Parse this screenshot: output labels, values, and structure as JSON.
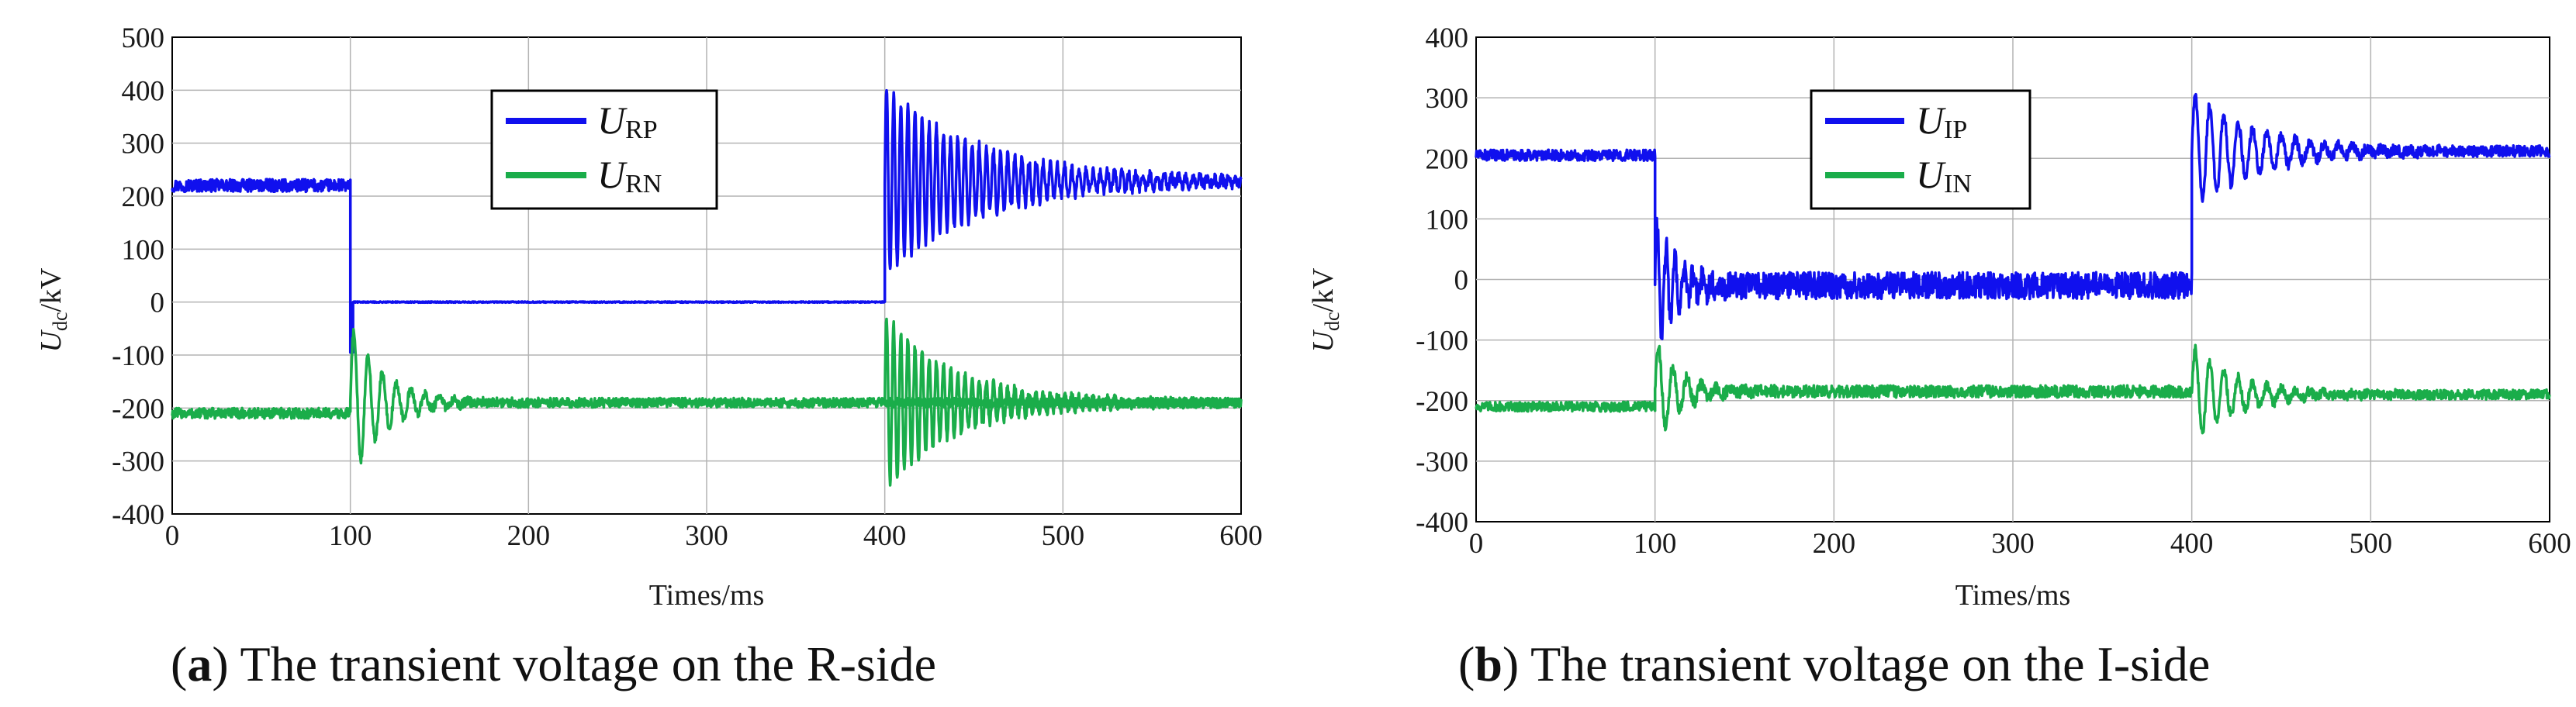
{
  "chart_data": [
    {
      "type": "line",
      "id": "a",
      "caption_letter": "a",
      "caption_text": "The transient voltage on the R-side",
      "xlabel": "Times/ms",
      "ylabel": "U",
      "ylabel_sub": "dc",
      "ylabel_unit": "/kV",
      "xlim": [
        0,
        600
      ],
      "ylim": [
        -400,
        500
      ],
      "xticks": [
        0,
        100,
        200,
        300,
        400,
        500,
        600
      ],
      "yticks": [
        500,
        400,
        300,
        200,
        100,
        0,
        -100,
        -200,
        -300,
        -400
      ],
      "legend": {
        "placement": "top-center"
      },
      "series": [
        {
          "name": "U_RP",
          "main": "U",
          "sub": "RP",
          "color": "#1010ee",
          "segments": [
            {
              "t0": 0,
              "t1": 100,
              "base": 220,
              "noise": 12
            },
            {
              "t0": 100,
              "t1": 101.5,
              "base": -95,
              "noise": 0,
              "spike": true
            },
            {
              "t0": 101.5,
              "t1": 400,
              "base": 0,
              "noise": 1
            },
            {
              "t0": 400,
              "t1": 600,
              "base": 228,
              "noise": 10,
              "osc_amp": 175,
              "osc_decay": 55,
              "osc_period": 4
            }
          ]
        },
        {
          "name": "U_RN",
          "main": "U",
          "sub": "RN",
          "color": "#1aad4a",
          "segments": [
            {
              "t0": 0,
              "t1": 100,
              "base": -210,
              "noise": 10
            },
            {
              "t0": 100,
              "t1": 600,
              "base": -190,
              "noise": 9,
              "osc_amp": 150,
              "osc_decay": 18,
              "osc_period": 8
            },
            {
              "t0": 400,
              "t1": 600,
              "base": -190,
              "noise": 9,
              "osc_amp": 165,
              "osc_decay": 40,
              "osc_period": 4
            }
          ]
        }
      ]
    },
    {
      "type": "line",
      "id": "b",
      "caption_letter": "b",
      "caption_text": "The transient voltage on the I-side",
      "xlabel": "Times/ms",
      "ylabel": "U",
      "ylabel_sub": "dc",
      "ylabel_unit": "/kV",
      "xlim": [
        0,
        600
      ],
      "ylim": [
        -400,
        400
      ],
      "xticks": [
        0,
        100,
        200,
        300,
        400,
        500,
        600
      ],
      "yticks": [
        400,
        300,
        200,
        100,
        0,
        -100,
        -200,
        -300,
        -400
      ],
      "legend": {
        "placement": "top-center"
      },
      "series": [
        {
          "name": "U_IP",
          "main": "U",
          "sub": "IP",
          "color": "#1010ee",
          "segments": [
            {
              "t0": 0,
              "t1": 100,
              "base": 205,
              "noise": 9
            },
            {
              "t0": 100,
              "t1": 400,
              "base": -10,
              "noise": 22,
              "osc_amp": 110,
              "osc_decay": 12,
              "osc_period": 5
            },
            {
              "t0": 400,
              "t1": 600,
              "base": 212,
              "noise": 9,
              "osc_amp": 100,
              "osc_decay": 35,
              "osc_period": 8
            }
          ]
        },
        {
          "name": "U_IN",
          "main": "U",
          "sub": "IN",
          "color": "#1aad4a",
          "segments": [
            {
              "t0": 0,
              "t1": 100,
              "base": -210,
              "noise": 8
            },
            {
              "t0": 100,
              "t1": 400,
              "base": -185,
              "noise": 10,
              "osc_amp": 85,
              "osc_decay": 14,
              "osc_period": 8
            },
            {
              "t0": 400,
              "t1": 600,
              "base": -190,
              "noise": 8,
              "osc_amp": 80,
              "osc_decay": 25,
              "osc_period": 8
            }
          ]
        }
      ]
    }
  ]
}
